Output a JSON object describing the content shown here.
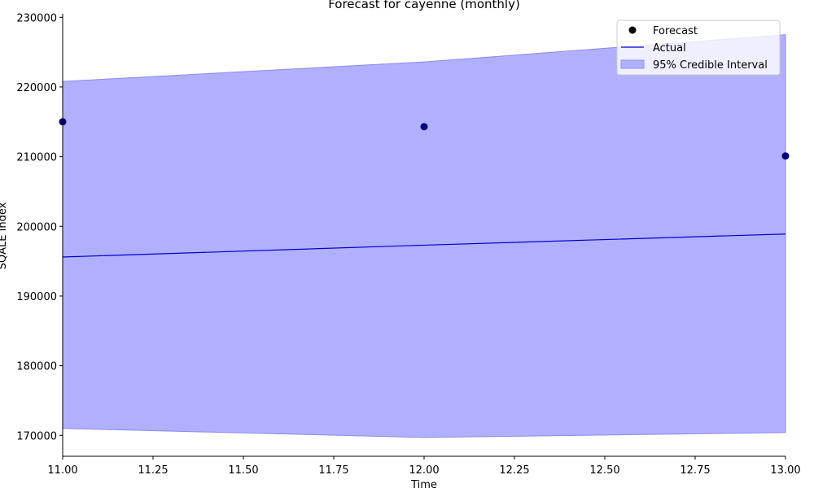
{
  "chart_data": {
    "type": "line",
    "title": "Forecast for cayenne (monthly)",
    "xlabel": "Time",
    "ylabel": "SQALE Index",
    "xlim": [
      11.0,
      13.0
    ],
    "ylim": [
      167000,
      230500
    ],
    "x_ticks": [
      11.0,
      11.25,
      11.5,
      11.75,
      12.0,
      12.25,
      12.5,
      12.75,
      13.0
    ],
    "x_tick_labels": [
      "11.00",
      "11.25",
      "11.50",
      "11.75",
      "12.00",
      "12.25",
      "12.50",
      "12.75",
      "13.00"
    ],
    "y_ticks": [
      170000,
      180000,
      190000,
      200000,
      210000,
      220000,
      230000
    ],
    "y_tick_labels": [
      "170000",
      "180000",
      "190000",
      "200000",
      "210000",
      "220000",
      "230000"
    ],
    "grid": false,
    "legend_position": "top-right",
    "series": [
      {
        "name": "Forecast",
        "kind": "scatter",
        "color": "#000080",
        "x": [
          11,
          12,
          13
        ],
        "y": [
          215000,
          214300,
          210100
        ]
      },
      {
        "name": "Actual",
        "kind": "line",
        "color": "#0000cc",
        "x": [
          11,
          12,
          13
        ],
        "y": [
          195600,
          197300,
          198900
        ]
      },
      {
        "name": "95% Credible Interval",
        "kind": "band",
        "color": "#b0b0ff",
        "x": [
          11,
          12,
          13
        ],
        "lower": [
          171000,
          169700,
          170400
        ],
        "upper": [
          220800,
          223600,
          227500
        ]
      }
    ]
  }
}
